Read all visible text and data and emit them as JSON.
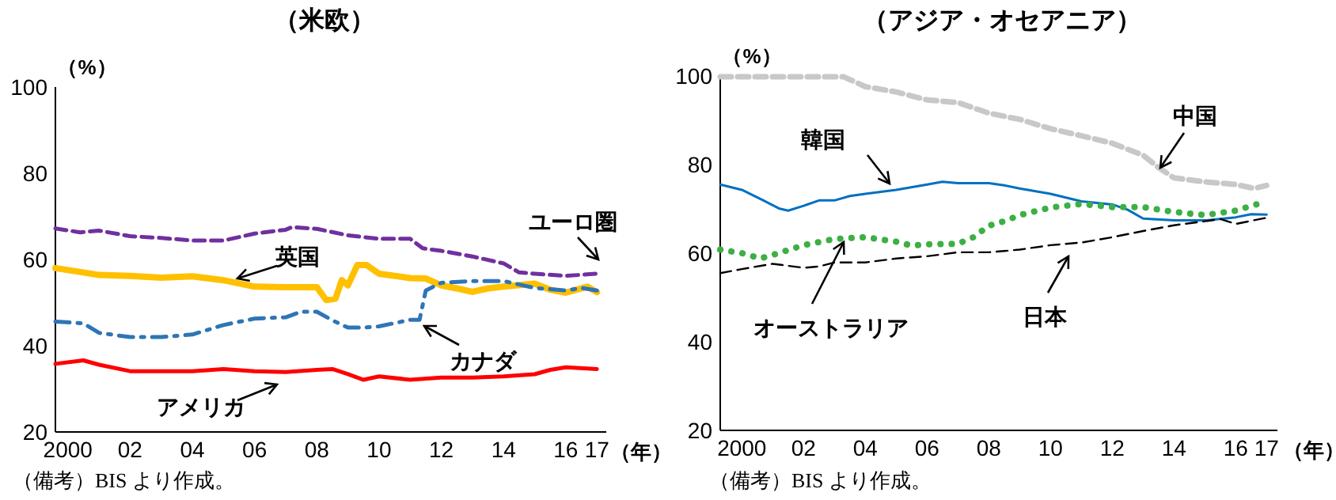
{
  "chart_data": [
    {
      "type": "line",
      "title": "（米欧）",
      "xlabel": "（年）",
      "ylabel": "（%）",
      "xlim": [
        1999.6,
        2017.3
      ],
      "xticks": [
        {
          "value": 2000,
          "label": "2000"
        },
        {
          "value": 2002,
          "label": "02"
        },
        {
          "value": 2004,
          "label": "04"
        },
        {
          "value": 2006,
          "label": "06"
        },
        {
          "value": 2008,
          "label": "08"
        },
        {
          "value": 2010,
          "label": "10"
        },
        {
          "value": 2012,
          "label": "12"
        },
        {
          "value": 2014,
          "label": "14"
        },
        {
          "value": 2016,
          "label": "16"
        },
        {
          "value": 2017,
          "label": "17"
        }
      ],
      "ylim": [
        20,
        100
      ],
      "yticks": [
        20,
        40,
        60,
        80,
        100
      ],
      "grid": false,
      "annotations": [
        "（備考）BIS より作成。"
      ],
      "series": [
        {
          "name": "ユーロ圏",
          "color": "#7030a0",
          "line_style": "dashed",
          "x": [
            1999.6,
            2000.4,
            2001,
            2002,
            2003,
            2004,
            2005,
            2006,
            2007,
            2007.2,
            2008,
            2009,
            2010,
            2011,
            2011.4,
            2012,
            2013,
            2014,
            2014.5,
            2015,
            2016,
            2017
          ],
          "values": [
            67.2,
            66.3,
            66.7,
            65.4,
            65,
            64.4,
            64.4,
            66,
            66.9,
            67.5,
            67.1,
            65.6,
            64.8,
            64.8,
            62.6,
            62,
            60.7,
            59.1,
            57,
            56.7,
            56.2,
            56.7
          ]
        },
        {
          "name": "英国",
          "color": "#ffc000",
          "line_style": "solid",
          "x": [
            1999.6,
            2000.5,
            2001,
            2002,
            2003,
            2004,
            2005,
            2006,
            2007,
            2008,
            2008.3,
            2008.6,
            2008.8,
            2009,
            2009.3,
            2009.6,
            2010,
            2011,
            2011.5,
            2012,
            2012.5,
            2013,
            2013.5,
            2014,
            2015,
            2015.5,
            2016,
            2016.7,
            2017
          ],
          "values": [
            58,
            57,
            56.4,
            56.2,
            55.8,
            56.1,
            55.2,
            53.7,
            53.6,
            53.6,
            50.6,
            50.9,
            55.2,
            54,
            58.7,
            58.7,
            56.7,
            55.7,
            55.6,
            54,
            53.3,
            52.5,
            53.3,
            53.7,
            54.4,
            53,
            52.3,
            53.7,
            52.4
          ]
        },
        {
          "name": "カナダ",
          "color": "#2e75b6",
          "line_style": "dashdot",
          "x": [
            1999.6,
            2000.5,
            2001,
            2002,
            2003,
            2004,
            2005,
            2006,
            2007,
            2007.5,
            2008,
            2008.5,
            2009,
            2009.5,
            2010,
            2011,
            2011.3,
            2011.5,
            2012,
            2013,
            2014,
            2015,
            2016,
            2016.5,
            2017
          ],
          "values": [
            45.6,
            45.2,
            43,
            42,
            42,
            42.6,
            44.8,
            46.3,
            46.6,
            47.9,
            47.9,
            45.9,
            44.2,
            44.2,
            44.5,
            46,
            46,
            52.8,
            54.6,
            55,
            55,
            53.4,
            52.8,
            53.4,
            52.8
          ]
        },
        {
          "name": "アメリカ",
          "color": "#ff0000",
          "line_style": "solid",
          "x": [
            1999.6,
            2000.5,
            2001,
            2002,
            2003,
            2004,
            2005,
            2006,
            2007,
            2008,
            2008.5,
            2009,
            2009.5,
            2010,
            2011,
            2012,
            2013,
            2014,
            2015,
            2015.5,
            2016,
            2017
          ],
          "values": [
            35.8,
            36.6,
            35.6,
            34.1,
            34.1,
            34.1,
            34.6,
            34.1,
            33.9,
            34.4,
            34.6,
            33.4,
            32.1,
            32.9,
            32.1,
            32.6,
            32.6,
            32.9,
            33.4,
            34.4,
            35,
            34.6
          ]
        }
      ]
    },
    {
      "type": "line",
      "title": "（アジア・オセアニア）",
      "xlabel": "（年）",
      "ylabel": "（%）",
      "xlim": [
        1999.3,
        2017.35
      ],
      "xticks": [
        {
          "value": 2000,
          "label": "2000"
        },
        {
          "value": 2002,
          "label": "02"
        },
        {
          "value": 2004,
          "label": "04"
        },
        {
          "value": 2006,
          "label": "06"
        },
        {
          "value": 2008,
          "label": "08"
        },
        {
          "value": 2010,
          "label": "10"
        },
        {
          "value": 2012,
          "label": "12"
        },
        {
          "value": 2014,
          "label": "14"
        },
        {
          "value": 2016,
          "label": "16"
        },
        {
          "value": 2017,
          "label": "17"
        }
      ],
      "ylim": [
        20,
        100
      ],
      "yticks": [
        20,
        40,
        60,
        80,
        100
      ],
      "grid": false,
      "annotations": [
        "（備考）BIS より作成。"
      ],
      "series": [
        {
          "name": "中国",
          "color": "#c8c8c8",
          "line_style": "dashed",
          "x": [
            1999.3,
            2001,
            2003.3,
            2004,
            2005,
            2006,
            2007,
            2008,
            2009,
            2010,
            2011,
            2012,
            2013,
            2013.5,
            2014,
            2015,
            2016,
            2016.6,
            2017
          ],
          "values": [
            99.8,
            99.8,
            99.8,
            97.6,
            96.4,
            94.6,
            94,
            91.6,
            90.2,
            88.1,
            86.5,
            84.8,
            82.1,
            79.3,
            77,
            76.1,
            75.5,
            74.6,
            75.3
          ]
        },
        {
          "name": "韓国",
          "color": "#0070c0",
          "line_style": "solid",
          "x": [
            1999.3,
            2000,
            2000.7,
            2001.2,
            2001.5,
            2002,
            2002.5,
            2003,
            2003.5,
            2004,
            2005,
            2006,
            2006.5,
            2007,
            2008,
            2008.5,
            2009,
            2010,
            2011,
            2012,
            2012.5,
            2013,
            2014,
            2015,
            2016,
            2016.5,
            2017
          ],
          "values": [
            75.5,
            74.3,
            71.9,
            70.1,
            69.6,
            70.7,
            71.9,
            71.9,
            72.9,
            73.4,
            74.3,
            75.5,
            76.1,
            75.8,
            75.8,
            75.3,
            74.6,
            73.4,
            71.7,
            71,
            69.8,
            67.8,
            67.4,
            67.4,
            68.1,
            68.8,
            68.7
          ]
        },
        {
          "name": "オーストラリア",
          "color": "#3cb043",
          "line_style": "dotted",
          "x": [
            1999.3,
            2000,
            2000.6,
            2001,
            2002,
            2003,
            2004,
            2005,
            2005.5,
            2006,
            2007,
            2007.5,
            2008,
            2008.5,
            2009,
            2010,
            2011,
            2012,
            2013,
            2014,
            2015,
            2016,
            2017
          ],
          "values": [
            60.8,
            60,
            58.8,
            59.6,
            61.8,
            63.2,
            63.6,
            62.6,
            61.7,
            62,
            62.1,
            63.6,
            66.2,
            67.2,
            68.6,
            70.3,
            71.1,
            70.4,
            70.4,
            69.3,
            68.6,
            69.6,
            71.7
          ]
        },
        {
          "name": "日本",
          "color": "#000000",
          "line_style": "dashed",
          "x": [
            1999.3,
            2000,
            2001,
            2002,
            2002.5,
            2003,
            2004,
            2005,
            2006,
            2007,
            2008,
            2009,
            2010,
            2010.5,
            2011,
            2012,
            2013,
            2014,
            2015,
            2015.5,
            2016,
            2017
          ],
          "values": [
            55.5,
            56.4,
            57.6,
            56.7,
            57,
            57.9,
            57.9,
            58.8,
            59.3,
            60.2,
            60.2,
            60.8,
            61.8,
            62.1,
            62.4,
            63.6,
            65,
            66.3,
            67.2,
            67.7,
            66.6,
            68
          ]
        }
      ]
    }
  ]
}
